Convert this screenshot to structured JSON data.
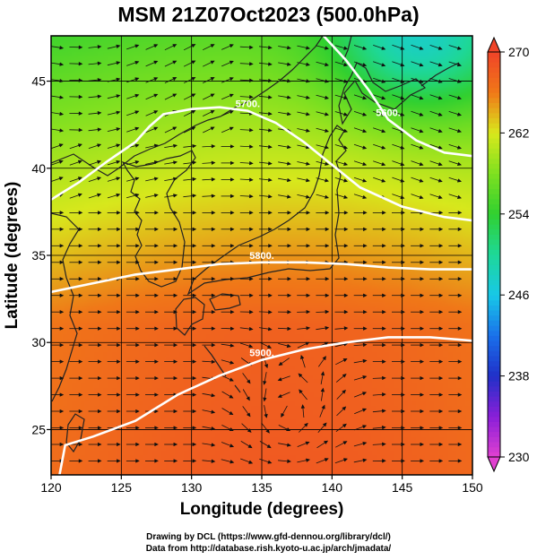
{
  "chart_data": {
    "type": "heatmap",
    "title": "MSM 21Z07Oct2023 (500.0hPa)",
    "xlabel": "Longitude (degrees)",
    "ylabel": "Latitude  (degrees)",
    "xlim": [
      120,
      150
    ],
    "ylim": [
      22.4,
      47.6
    ],
    "x_ticks": [
      120,
      125,
      130,
      135,
      140,
      145,
      150
    ],
    "y_ticks": [
      25,
      30,
      35,
      40,
      45
    ],
    "grid": true,
    "colorbar": {
      "min": 230,
      "max": 270,
      "ticks": [
        230,
        238,
        246,
        254,
        262,
        270
      ],
      "placement": "right",
      "stops": [
        {
          "v": 230,
          "color": "#e040d0"
        },
        {
          "v": 234,
          "color": "#8a1fd8"
        },
        {
          "v": 238,
          "color": "#2030c8"
        },
        {
          "v": 242,
          "color": "#1a70ea"
        },
        {
          "v": 246,
          "color": "#18c8e8"
        },
        {
          "v": 250,
          "color": "#1ed898"
        },
        {
          "v": 254,
          "color": "#30d030"
        },
        {
          "v": 258,
          "color": "#7ee020"
        },
        {
          "v": 262,
          "color": "#d8e81c"
        },
        {
          "v": 266,
          "color": "#f07818"
        },
        {
          "v": 270,
          "color": "#f04428"
        }
      ]
    },
    "contours": [
      {
        "label": "5700.",
        "points": [
          [
            120,
            38.2
          ],
          [
            122,
            39.2
          ],
          [
            124,
            40.4
          ],
          [
            126,
            41.5
          ],
          [
            127,
            42.4
          ],
          [
            128,
            43.1
          ],
          [
            130,
            43.4
          ],
          [
            132,
            43.5
          ],
          [
            134,
            43.3
          ],
          [
            136,
            42.6
          ],
          [
            138,
            41.5
          ],
          [
            140,
            40.2
          ],
          [
            142,
            38.9
          ],
          [
            145,
            37.8
          ],
          [
            148,
            37.2
          ],
          [
            150,
            37.0
          ]
        ]
      },
      {
        "label": "5800.",
        "points": [
          [
            120,
            32.9
          ],
          [
            123,
            33.4
          ],
          [
            126,
            33.9
          ],
          [
            129,
            34.2
          ],
          [
            132,
            34.5
          ],
          [
            135,
            34.6
          ],
          [
            138,
            34.6
          ],
          [
            141,
            34.5
          ],
          [
            144,
            34.3
          ],
          [
            147,
            34.2
          ],
          [
            150,
            34.2
          ]
        ]
      },
      {
        "label": "5900.",
        "points": [
          [
            120.6,
            22.4
          ],
          [
            121,
            24.1
          ],
          [
            123,
            24.6
          ],
          [
            126,
            25.5
          ],
          [
            129,
            27.0
          ],
          [
            132,
            28.1
          ],
          [
            135,
            29.0
          ],
          [
            138,
            29.6
          ],
          [
            141,
            30.0
          ],
          [
            144,
            30.3
          ],
          [
            147,
            30.3
          ],
          [
            150,
            30.1
          ]
        ]
      },
      {
        "label": "5600.",
        "points": [
          [
            139.4,
            47.6
          ],
          [
            141,
            46.2
          ],
          [
            142.6,
            44.5
          ],
          [
            144,
            42.8
          ],
          [
            146,
            41.6
          ],
          [
            148,
            40.9
          ],
          [
            150,
            40.7
          ]
        ]
      }
    ]
  },
  "credits": {
    "line1": "Drawing by DCL (https://www.gfd-dennou.org/library/dcl/)",
    "line2": "Data from http://database.rish.kyoto-u.ac.jp/arch/jmadata/"
  }
}
